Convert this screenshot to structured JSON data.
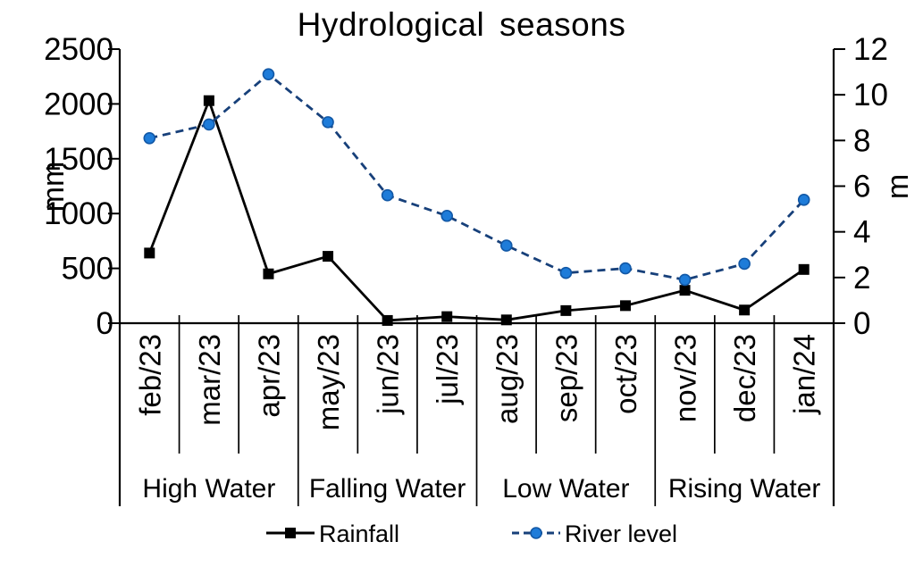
{
  "chart_data": {
    "type": "line",
    "title": "Hydrological seasons",
    "categories": [
      "feb/23",
      "mar/23",
      "apr/23",
      "may/23",
      "jun/23",
      "jul/23",
      "aug/23",
      "sep/23",
      "oct/23",
      "nov/23",
      "dec/23",
      "jan/24"
    ],
    "series": [
      {
        "name": "Rainfall",
        "axis": "left",
        "unit": "mm",
        "values": [
          640,
          2030,
          450,
          610,
          25,
          60,
          30,
          115,
          160,
          300,
          120,
          490
        ],
        "style": {
          "color": "#000000",
          "dash": "solid",
          "marker": "square",
          "marker_fill": "#000000",
          "marker_edge": "#000000"
        }
      },
      {
        "name": "River level",
        "axis": "right",
        "unit": "m",
        "values": [
          8.1,
          8.7,
          10.9,
          8.8,
          5.6,
          4.7,
          3.4,
          2.2,
          2.4,
          1.9,
          2.6,
          5.4
        ],
        "style": {
          "color": "#17407A",
          "dash": "dashed",
          "marker": "circle",
          "marker_fill": "#1E7CD9",
          "marker_edge": "#1258A6"
        }
      }
    ],
    "left_axis": {
      "label": "mm",
      "min": 0,
      "max": 2500,
      "step": 500,
      "ticks": [
        "0",
        "500",
        "1000",
        "1500",
        "2000",
        "2500"
      ]
    },
    "right_axis": {
      "label": "m",
      "min": 0,
      "max": 12,
      "step": 2,
      "ticks": [
        "0",
        "2",
        "4",
        "6",
        "8",
        "10",
        "12"
      ]
    },
    "seasons": [
      {
        "label": "High Water",
        "from": 0,
        "to": 3
      },
      {
        "label": "Falling Water",
        "from": 3,
        "to": 6
      },
      {
        "label": "Low Water",
        "from": 6,
        "to": 9
      },
      {
        "label": "Rising Water",
        "from": 9,
        "to": 12
      }
    ],
    "legend": [
      "Rainfall",
      "River level"
    ],
    "legend_position": "bottom",
    "grid": false,
    "colors": {
      "axis": "#000000",
      "text": "#000000",
      "background": "#ffffff"
    }
  }
}
